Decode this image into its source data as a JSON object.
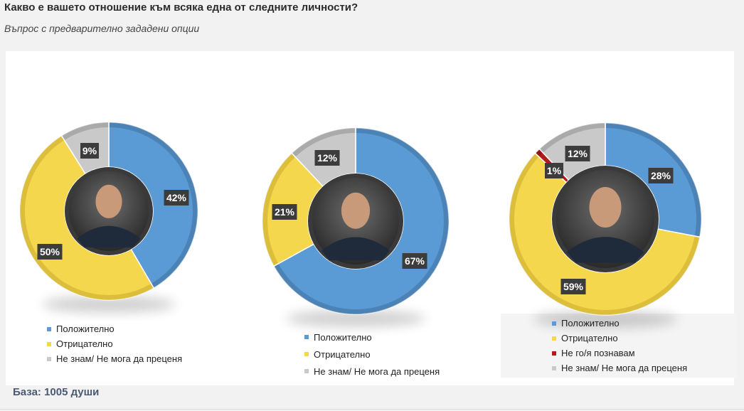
{
  "page": {
    "title": "Какво е вашето отношение към всяка една от следните личности?",
    "subtitle": "Въпрос с предварително зададени опции",
    "base": "База: 1005 души"
  },
  "colors": {
    "Положително": "#5b9bd5",
    "Отрицателно": "#f5d74e",
    "Не го/я познавам": "#b31b1b",
    "Не знам/ Не мога да преценя": "#c9c9c9"
  },
  "chart_data": [
    {
      "type": "pie",
      "variant": "donut",
      "categories": [
        "Положително",
        "Отрицателно",
        "Не знам/ Не мога да преценя"
      ],
      "values": [
        42,
        50,
        9
      ],
      "data_labels": [
        "42%",
        "50%",
        "9%"
      ],
      "center": "portrait photo",
      "legend": [
        "Положително",
        "Отрицателно",
        "Не знам/ Не мога да преценя"
      ]
    },
    {
      "type": "pie",
      "variant": "donut",
      "categories": [
        "Положително",
        "Отрицателно",
        "Не знам/ Не мога да преценя"
      ],
      "values": [
        67,
        21,
        12
      ],
      "data_labels": [
        "67%",
        "21%",
        "12%"
      ],
      "center": "portrait photo",
      "legend": [
        "Положително",
        "Отрицателно",
        "Не знам/ Не мога да преценя"
      ]
    },
    {
      "type": "pie",
      "variant": "donut",
      "categories": [
        "Положително",
        "Отрицателно",
        "Не го/я познавам",
        "Не знам/ Не мога да преценя"
      ],
      "values": [
        28,
        59,
        1,
        12
      ],
      "data_labels": [
        "28%",
        "59%",
        "1%",
        "12%"
      ],
      "center": "portrait photo",
      "legend": [
        "Положително",
        "Отрицателно",
        "Не го/я познавам",
        "Не знам/ Не мога да преценя"
      ]
    }
  ]
}
